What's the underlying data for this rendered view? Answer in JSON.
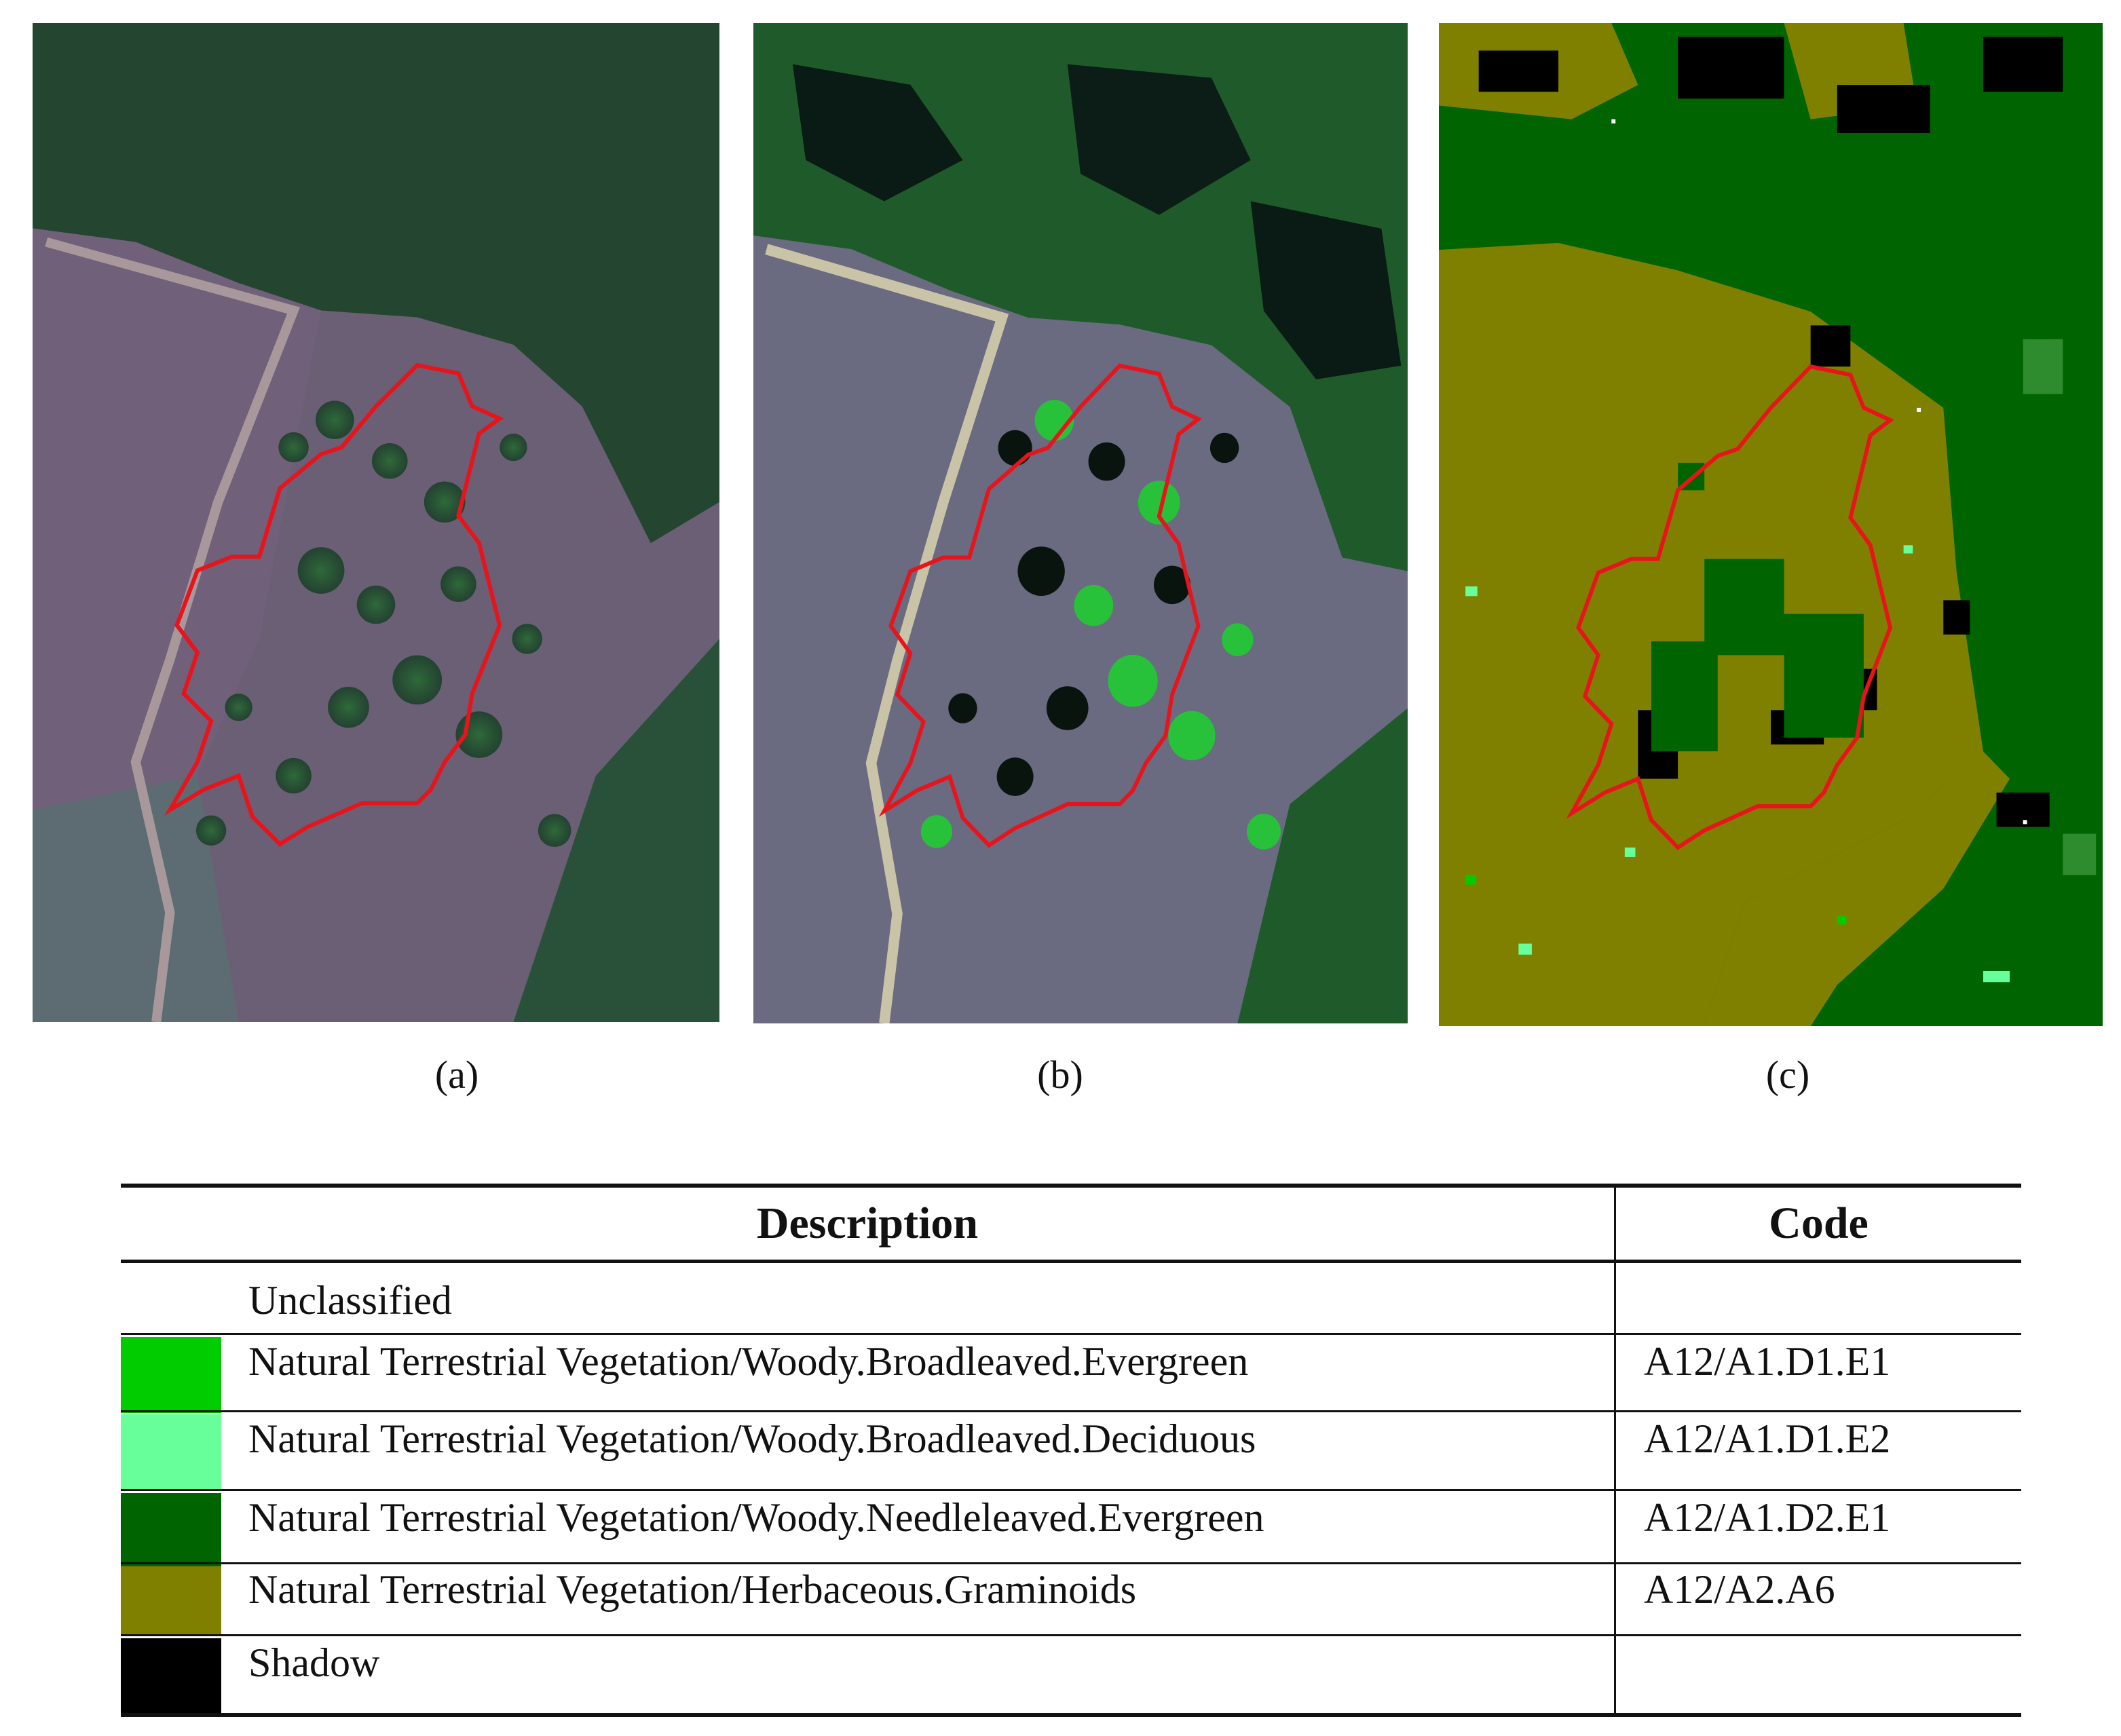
{
  "captions": {
    "a": "(a)",
    "b": "(b)",
    "c": "(c)"
  },
  "colors": {
    "boundary": "#e8141c",
    "broadleaved_evergreen": "#00cc00",
    "broadleaved_deciduous": "#66ff99",
    "needleleaved_evergreen": "#006400",
    "herbaceous_graminoids": "#808000",
    "shadow": "#000000"
  },
  "legend": {
    "header": {
      "description": "Description",
      "code": "Code"
    },
    "rows": [
      {
        "color": "#ffffff",
        "description": "Unclassified",
        "code": ""
      },
      {
        "color": "#00cc00",
        "description": "Natural Terrestrial Vegetation/Woody.Broadleaved.Evergreen",
        "code": "A12/A1.D1.E1"
      },
      {
        "color": "#66ff99",
        "description": "Natural Terrestrial Vegetation/Woody.Broadleaved.Deciduous",
        "code": "A12/A1.D1.E2"
      },
      {
        "color": "#006400",
        "description": "Natural Terrestrial Vegetation/Woody.Needleleaved.Evergreen",
        "code": "A12/A1.D2.E1"
      },
      {
        "color": "#808000",
        "description": "Natural Terrestrial Vegetation/Herbaceous.Graminoids",
        "code": "A12/A2.A6"
      },
      {
        "color": "#000000",
        "description": "Shadow",
        "code": ""
      }
    ]
  }
}
